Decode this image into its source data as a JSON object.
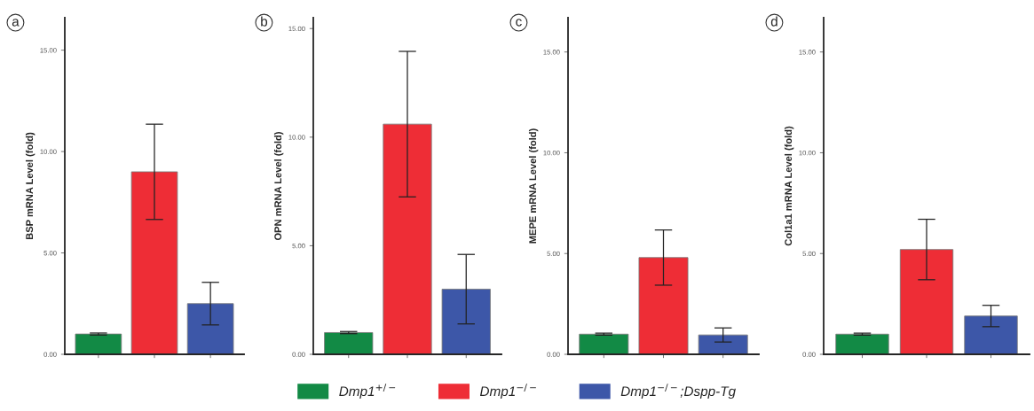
{
  "chart_data": [
    {
      "type": "bar",
      "title": "a",
      "ylabel": "BSP mRNA Level (fold)",
      "categories": [
        null,
        null,
        null
      ],
      "ylim": [
        0,
        16.6
      ],
      "yticks": [
        {
          "value": 0,
          "label": "0.00"
        },
        {
          "value": 5,
          "label": "5.00"
        },
        {
          "value": 10,
          "label": "10.00"
        },
        {
          "value": 15,
          "label": "15.00"
        }
      ],
      "legend": "bottom",
      "series": [
        {
          "name": "Dmp1$^{+/−}$",
          "color": "#128a45",
          "values": [
            1.0,
            null,
            null
          ],
          "errors": [
            0.05,
            null,
            null
          ]
        },
        {
          "name": "Dmp1$^{−/−}$",
          "color": "#ee2d36",
          "values": [
            null,
            9.0,
            null
          ],
          "errors": [
            null,
            2.35,
            null
          ]
        },
        {
          "name": "Dmp1$^{−/−}$;Dspp-Tg",
          "color": "#3d57a8",
          "values": [
            null,
            null,
            2.5
          ],
          "errors": [
            null,
            null,
            1.05
          ]
        }
      ]
    },
    {
      "type": "bar",
      "title": "b",
      "ylabel": "OPN mRNA Level (fold)",
      "categories": [
        null,
        null,
        null
      ],
      "ylim": [
        0,
        15.5
      ],
      "yticks": [
        {
          "value": 0,
          "label": "0.00"
        },
        {
          "value": 5,
          "label": "5.00"
        },
        {
          "value": 10,
          "label": "10.00"
        },
        {
          "value": 15,
          "label": "15.00"
        }
      ],
      "series": [
        {
          "color": "#128a45",
          "values": [
            1.0,
            null,
            null
          ],
          "errors": [
            0.05,
            null,
            null
          ]
        },
        {
          "color": "#ee2d36",
          "values": [
            null,
            10.6,
            null
          ],
          "errors": [
            null,
            3.35,
            null
          ]
        },
        {
          "color": "#3d57a8",
          "values": [
            null,
            null,
            3.0
          ],
          "errors": [
            null,
            null,
            1.6
          ]
        }
      ]
    },
    {
      "type": "bar",
      "title": "c",
      "ylabel": "MEPE mRNA Level (fold)",
      "categories": [
        null,
        null,
        null
      ],
      "ylim": [
        0,
        16.7
      ],
      "yticks": [
        {
          "value": 0,
          "label": "0.00"
        },
        {
          "value": 5,
          "label": "5.00"
        },
        {
          "value": 10,
          "label": "10.00"
        },
        {
          "value": 15,
          "label": "15.00"
        }
      ],
      "series": [
        {
          "color": "#128a45",
          "values": [
            1.0,
            null,
            null
          ],
          "errors": [
            0.05,
            null,
            null
          ]
        },
        {
          "color": "#ee2d36",
          "values": [
            null,
            4.8,
            null
          ],
          "errors": [
            null,
            1.37,
            null
          ]
        },
        {
          "color": "#3d57a8",
          "values": [
            null,
            null,
            0.96
          ],
          "errors": [
            null,
            null,
            0.35
          ]
        }
      ]
    },
    {
      "type": "bar",
      "title": "d",
      "ylabel": "Col1a1 mRNA Level (fold)",
      "categories": [
        null,
        null,
        null
      ],
      "ylim": [
        0,
        16.7
      ],
      "yticks": [
        {
          "value": 0,
          "label": "0.00"
        },
        {
          "value": 5,
          "label": "5.00"
        },
        {
          "value": 10,
          "label": "10.00"
        },
        {
          "value": 15,
          "label": "15.00"
        }
      ],
      "series": [
        {
          "color": "#128a45",
          "values": [
            1.0,
            null,
            null
          ],
          "errors": [
            0.05,
            null,
            null
          ]
        },
        {
          "color": "#ee2d36",
          "values": [
            null,
            5.2,
            null
          ],
          "errors": [
            null,
            1.5,
            null
          ]
        },
        {
          "color": "#3d57a8",
          "values": [
            null,
            null,
            1.9
          ],
          "errors": [
            null,
            null,
            0.53
          ]
        }
      ]
    }
  ]
}
